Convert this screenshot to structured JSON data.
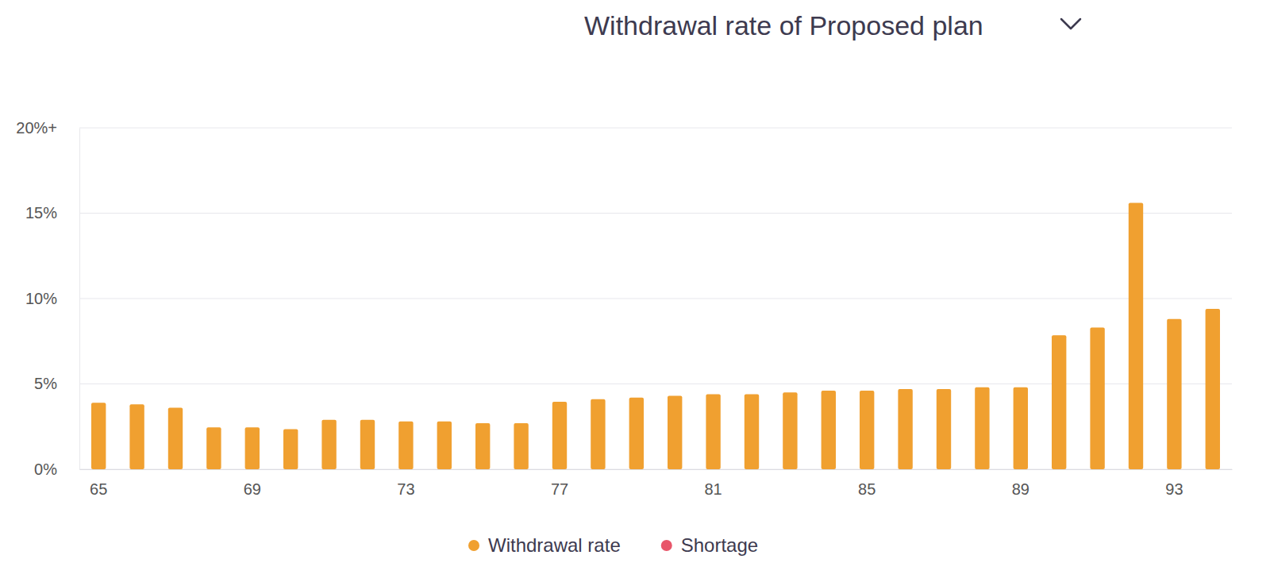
{
  "chart_data": {
    "type": "bar",
    "title": "Withdrawal rate of Proposed plan",
    "categories": [
      "65",
      null,
      null,
      null,
      "69",
      null,
      null,
      null,
      "73",
      null,
      null,
      null,
      "77",
      null,
      null,
      null,
      "81",
      null,
      null,
      null,
      "85",
      null,
      null,
      null,
      "89",
      null,
      null,
      null,
      "93",
      null
    ],
    "series": [
      {
        "name": "Withdrawal rate",
        "color": "#f0a030",
        "values": [
          3.9,
          3.8,
          3.6,
          2.45,
          2.45,
          2.35,
          2.9,
          2.9,
          2.8,
          2.8,
          2.7,
          2.7,
          3.95,
          4.1,
          4.2,
          4.3,
          4.4,
          4.4,
          4.5,
          4.6,
          4.6,
          4.7,
          4.7,
          4.8,
          4.8,
          7.85,
          8.3,
          15.6,
          8.8,
          9.4
        ]
      },
      {
        "name": "Shortage",
        "color": "#e8566a",
        "values": [
          null,
          null,
          null,
          null,
          null,
          null,
          null,
          null,
          null,
          null,
          null,
          null,
          null,
          null,
          null,
          null,
          null,
          null,
          null,
          null,
          null,
          null,
          null,
          null,
          null,
          null,
          null,
          null,
          null,
          null
        ]
      }
    ],
    "ylim": [
      0,
      20
    ],
    "yticks": [
      {
        "value": 0,
        "label": "0%"
      },
      {
        "value": 5,
        "label": "5%"
      },
      {
        "value": 10,
        "label": "10%"
      },
      {
        "value": 15,
        "label": "15%"
      },
      {
        "value": 20,
        "label": "20%+"
      }
    ],
    "grid": true,
    "legend": "bottom"
  }
}
